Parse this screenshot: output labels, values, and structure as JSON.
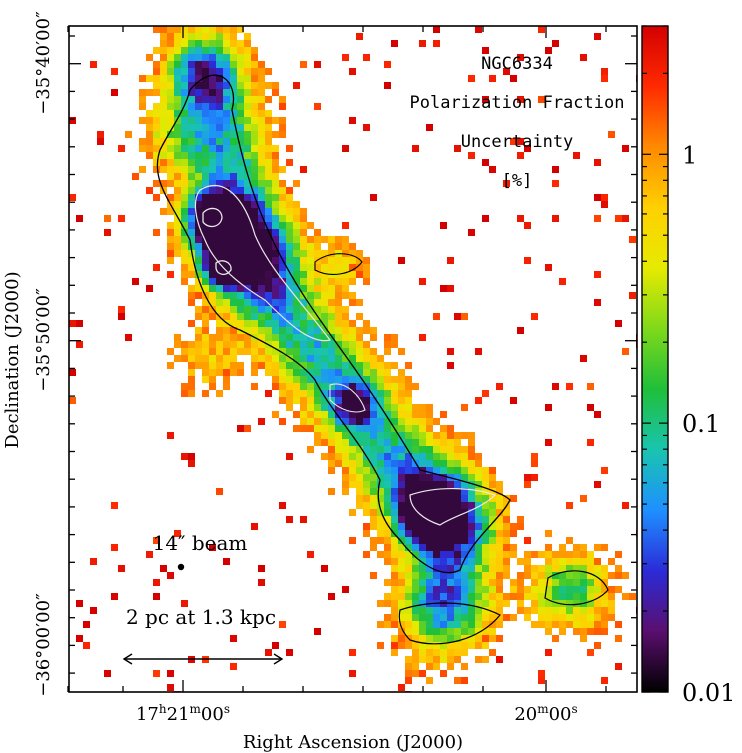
{
  "chart_data": {
    "type": "heatmap",
    "title_lines": [
      "NGC6334",
      "Polarization Fraction",
      "Uncertainty",
      "[%]"
    ],
    "xlabel": "Right Ascension (J2000)",
    "ylabel": "Declination (J2000)",
    "x_ticks": [
      {
        "h": "17",
        "m": "21",
        "s": "00"
      },
      {
        "m": "20",
        "s": "00"
      }
    ],
    "y_ticks": [
      "−35°40′00″",
      "−35°50′00″",
      "−36°00′00″"
    ],
    "colorbar": {
      "scale": "log",
      "range": [
        0.01,
        3
      ],
      "ticks": [
        {
          "value": 1,
          "label": "1"
        },
        {
          "value": 0.1,
          "label": "0.1"
        },
        {
          "value": 0.01,
          "label": "0.01"
        }
      ],
      "colormap": [
        "#000000",
        "#5a0f6e",
        "#2b2bd8",
        "#1e90ff",
        "#19c4b0",
        "#1fbf3a",
        "#7fd91a",
        "#e6ea00",
        "#ffd000",
        "#ff8a00",
        "#ff2a00",
        "#d40000"
      ]
    },
    "beam_label": "14″ beam",
    "scalebar_label": "2 pc at 1.3 kpc"
  }
}
